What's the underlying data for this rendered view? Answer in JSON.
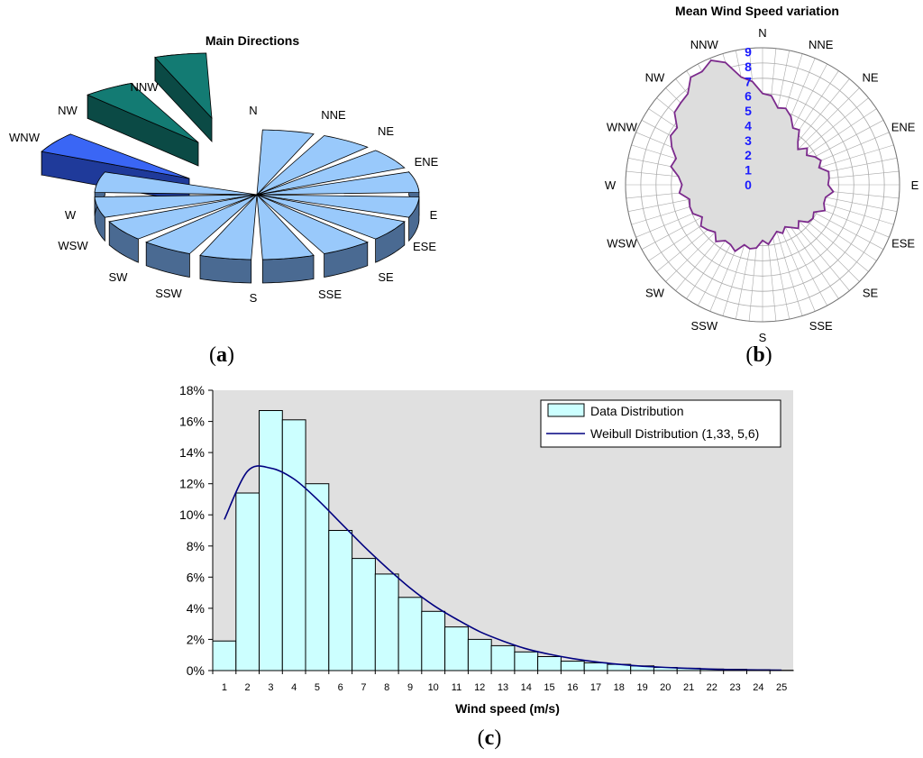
{
  "chart_data": [
    {
      "panel": "a",
      "type": "pie",
      "title": "Main Directions",
      "categories": [
        "N",
        "NNE",
        "NE",
        "ENE",
        "E",
        "ESE",
        "SE",
        "SSE",
        "S",
        "SSW",
        "SW",
        "WSW",
        "W",
        "WNW",
        "NW",
        "NNW"
      ],
      "values": [
        1,
        1,
        1,
        1,
        1,
        1,
        1,
        1,
        1,
        1,
        1,
        1,
        1,
        1,
        1,
        1
      ],
      "exploded": [
        "WNW",
        "NW",
        "NNW"
      ],
      "colors": {
        "main": "#99c9fb",
        "side": "#4a6a92",
        "wnw": "#3a66f5",
        "nw_nnw": "#137b73"
      }
    },
    {
      "panel": "b",
      "type": "radar",
      "title": "Mean Wind Speed variation",
      "categories": [
        "N",
        "NNE",
        "NE",
        "ENE",
        "E",
        "ESE",
        "SE",
        "SSE",
        "S",
        "SSW",
        "SW",
        "WSW",
        "W",
        "WNW",
        "NW",
        "NNW"
      ],
      "ticks": [
        "0",
        "1",
        "2",
        "3",
        "4",
        "5",
        "6",
        "7",
        "8",
        "9"
      ],
      "rmax": 9,
      "values": [
        6.0,
        4.8,
        3.4,
        4.0,
        4.5,
        4.2,
        3.6,
        3.2,
        3.9,
        4.5,
        4.6,
        4.8,
        5.4,
        6.4,
        7.6,
        8.9
      ],
      "colors": {
        "line": "#7b2a8c",
        "fill": "#dddddd",
        "grid": "#aaaaaa"
      }
    },
    {
      "panel": "c",
      "type": "bar",
      "title": "",
      "xlabel": "Wind speed (m/s)",
      "ylabel": "",
      "ylim": [
        0,
        18
      ],
      "yticks": [
        "0%",
        "2%",
        "4%",
        "6%",
        "8%",
        "10%",
        "12%",
        "14%",
        "16%",
        "18%"
      ],
      "categories": [
        "1",
        "2",
        "3",
        "4",
        "5",
        "6",
        "7",
        "8",
        "9",
        "10",
        "11",
        "12",
        "13",
        "14",
        "15",
        "16",
        "17",
        "18",
        "19",
        "20",
        "21",
        "22",
        "23",
        "24",
        "25"
      ],
      "series": [
        {
          "name": "Data Distribution",
          "type": "bar",
          "values": [
            1.9,
            11.4,
            16.7,
            16.1,
            12.0,
            9.0,
            7.2,
            6.2,
            4.7,
            3.8,
            2.8,
            2.0,
            1.6,
            1.2,
            0.9,
            0.6,
            0.5,
            0.4,
            0.3,
            0.2,
            0.15,
            0.1,
            0.08,
            0.05,
            0.02
          ]
        },
        {
          "name": "Weibull Distribution (1,33, 5,6)",
          "type": "line",
          "values": [
            9.7,
            12.8,
            13.0,
            12.3,
            11.0,
            9.5,
            8.0,
            6.6,
            5.3,
            4.2,
            3.3,
            2.5,
            1.9,
            1.4,
            1.05,
            0.77,
            0.56,
            0.4,
            0.28,
            0.2,
            0.14,
            0.09,
            0.06,
            0.04,
            0.03
          ]
        }
      ],
      "colors": {
        "bar": "#ccffff",
        "line": "#000080",
        "plot_bg": "#e0e0e0"
      }
    }
  ],
  "captions": {
    "a": "a",
    "b": "b",
    "c": "c"
  }
}
